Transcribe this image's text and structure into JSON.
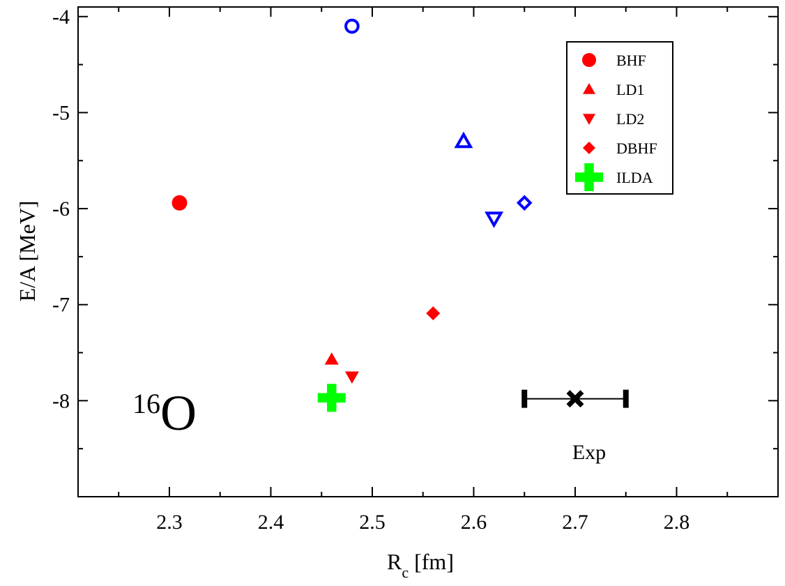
{
  "chart_data": {
    "type": "scatter",
    "xlabel": "R",
    "xlabel_sub": "c",
    "xlabel_unit": "[fm]",
    "ylabel": "E/A [MeV]",
    "xlim": [
      2.21,
      2.9
    ],
    "ylim": [
      -9.0,
      -3.9
    ],
    "x_ticks": [
      2.3,
      2.4,
      2.5,
      2.6,
      2.7,
      2.8
    ],
    "x_tick_labels": [
      "2.3",
      "2.4",
      "2.5",
      "2.6",
      "2.7",
      "2.8"
    ],
    "y_ticks": [
      -8,
      -7,
      -6,
      -5,
      -4
    ],
    "y_tick_labels": [
      "-8",
      "-7",
      "-6",
      "-5",
      "-4"
    ],
    "nucleus_mass": "16",
    "nucleus_symbol": "O",
    "series": [
      {
        "name": "BHF",
        "marker": "circle",
        "color": "#ff0000",
        "points": [
          {
            "x": 2.31,
            "y": -5.94,
            "style": "filled"
          },
          {
            "x": 2.48,
            "y": -4.1,
            "style": "open",
            "color": "#0000ff"
          }
        ]
      },
      {
        "name": "LD1",
        "marker": "triangle-up",
        "color": "#ff0000",
        "points": [
          {
            "x": 2.46,
            "y": -7.57,
            "style": "filled"
          },
          {
            "x": 2.59,
            "y": -5.3,
            "style": "open",
            "color": "#0000ff"
          }
        ]
      },
      {
        "name": "LD2",
        "marker": "triangle-down",
        "color": "#ff0000",
        "points": [
          {
            "x": 2.48,
            "y": -7.75,
            "style": "filled"
          },
          {
            "x": 2.62,
            "y": -6.1,
            "style": "open",
            "color": "#0000ff"
          }
        ]
      },
      {
        "name": "DBHF",
        "marker": "diamond",
        "color": "#ff0000",
        "points": [
          {
            "x": 2.56,
            "y": -7.09,
            "style": "filled"
          },
          {
            "x": 2.65,
            "y": -5.94,
            "style": "open",
            "color": "#0000ff"
          }
        ]
      },
      {
        "name": "ILDA",
        "marker": "plus",
        "color": "#00ff00",
        "points": [
          {
            "x": 2.46,
            "y": -7.97,
            "style": "filled"
          }
        ]
      }
    ],
    "experiment": {
      "label": "Exp",
      "x": 2.7,
      "y": -7.98,
      "x_err": 0.05,
      "marker": "x",
      "color": "#000000"
    },
    "legend": {
      "placement": "top-right",
      "entries": [
        {
          "label": "BHF",
          "marker": "circle",
          "color": "#ff0000"
        },
        {
          "label": "LD1",
          "marker": "triangle-up",
          "color": "#ff0000"
        },
        {
          "label": "LD2",
          "marker": "triangle-down",
          "color": "#ff0000"
        },
        {
          "label": "DBHF",
          "marker": "diamond",
          "color": "#ff0000"
        },
        {
          "label": "ILDA",
          "marker": "plus",
          "color": "#00ff00"
        }
      ]
    },
    "grid": false
  }
}
